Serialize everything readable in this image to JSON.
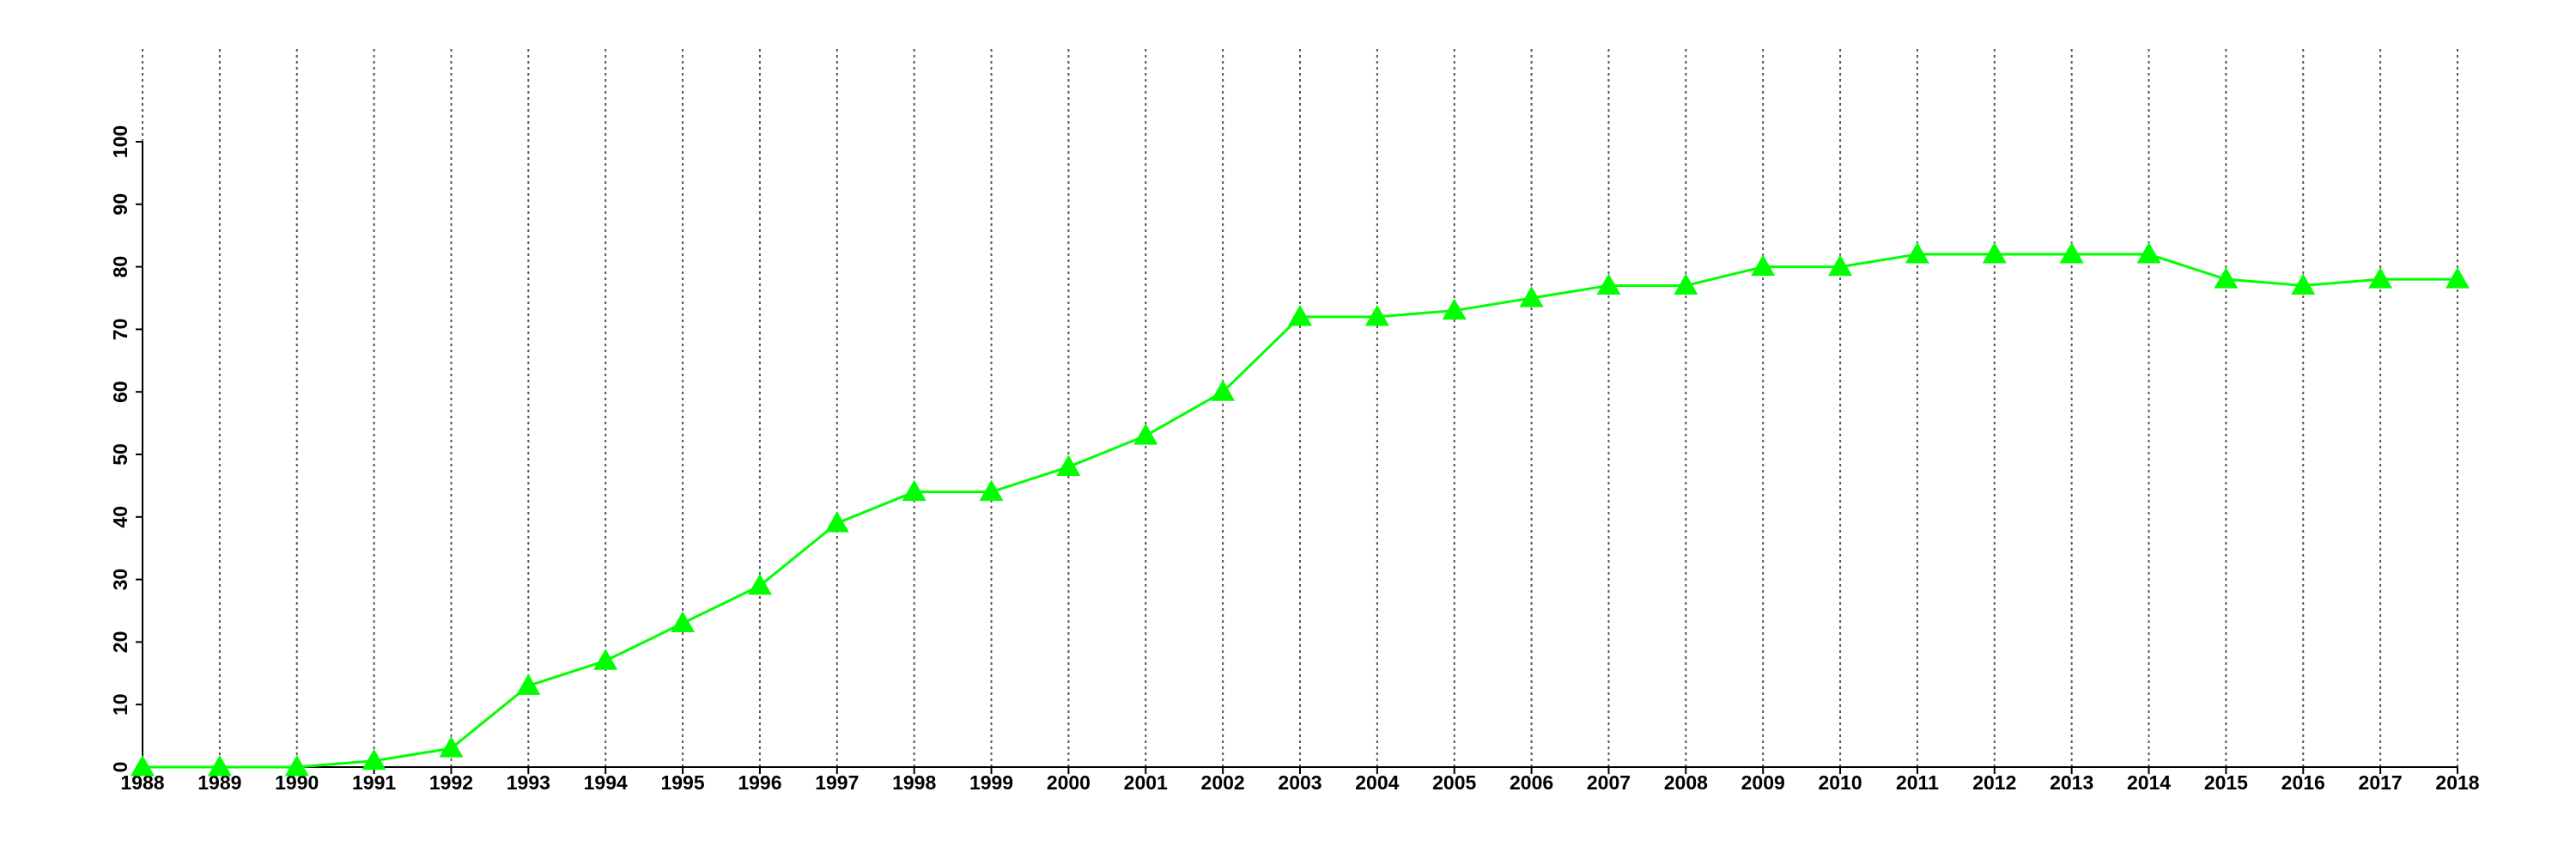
{
  "chart_data": {
    "type": "line",
    "x": [
      1988,
      1989,
      1990,
      1991,
      1992,
      1993,
      1994,
      1995,
      1996,
      1997,
      1998,
      1999,
      2000,
      2001,
      2002,
      2003,
      2004,
      2005,
      2006,
      2007,
      2008,
      2009,
      2010,
      2011,
      2012,
      2013,
      2014,
      2015,
      2016,
      2017,
      2018
    ],
    "values": [
      0,
      0,
      0,
      1,
      3,
      13,
      17,
      23,
      29,
      39,
      44,
      44,
      48,
      53,
      60,
      72,
      72,
      73,
      75,
      77,
      77,
      80,
      80,
      82,
      82,
      82,
      82,
      78,
      77,
      78,
      78
    ],
    "color": "#00ff00",
    "marker": "triangle",
    "xlim": [
      1988,
      2018
    ],
    "xticks": [
      1988,
      1989,
      1990,
      1991,
      1992,
      1993,
      1994,
      1995,
      1996,
      1997,
      1998,
      1999,
      2000,
      2001,
      2002,
      2003,
      2004,
      2005,
      2006,
      2007,
      2008,
      2009,
      2010,
      2011,
      2012,
      2013,
      2014,
      2015,
      2016,
      2017,
      2018
    ],
    "ylim": [
      0,
      100
    ],
    "yticks": [
      0,
      10,
      20,
      30,
      40,
      50,
      60,
      70,
      80,
      90,
      100
    ],
    "grid": "x"
  }
}
